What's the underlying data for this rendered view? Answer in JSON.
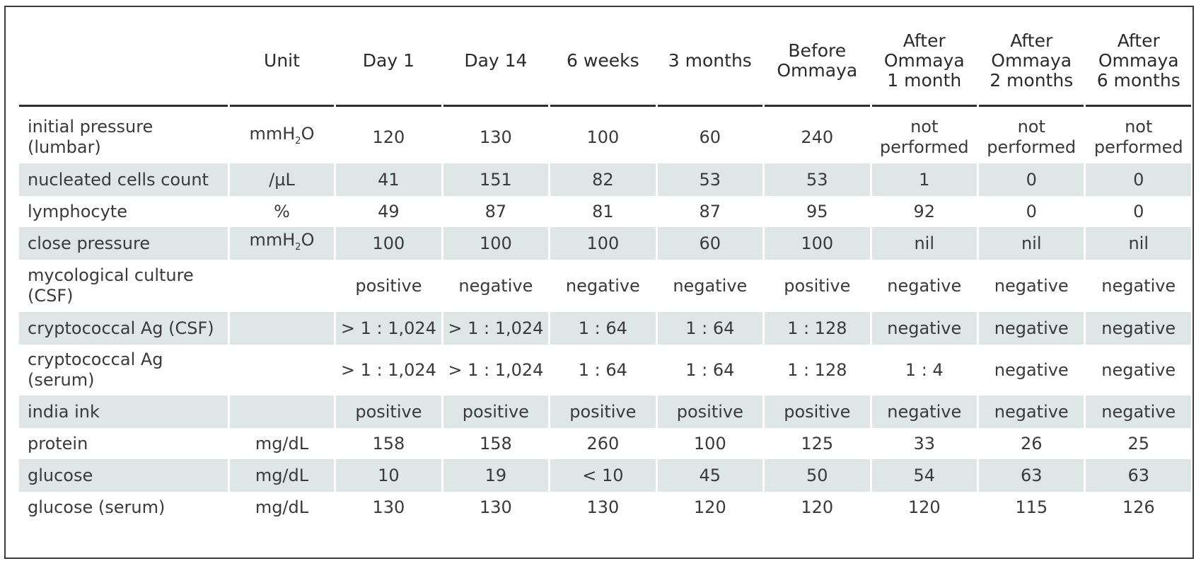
{
  "table": {
    "headers": [
      "",
      "Unit",
      "Day 1",
      "Day 14",
      "6 weeks",
      "3 months",
      "Before\nOmmaya",
      "After\nOmmaya\n1 month",
      "After\nOmmaya\n2 months",
      "After\nOmmaya\n6 months"
    ],
    "header_lines": [
      [
        ""
      ],
      [
        "Unit"
      ],
      [
        "Day 1"
      ],
      [
        "Day 14"
      ],
      [
        "6 weeks"
      ],
      [
        "3 months"
      ],
      [
        "Before",
        "Ommaya"
      ],
      [
        "After",
        "Ommaya",
        "1 month"
      ],
      [
        "After",
        "Ommaya",
        "2 months"
      ],
      [
        "After",
        "Ommaya",
        "6 months"
      ]
    ],
    "rows": [
      {
        "label": [
          "initial pressure",
          "(lumbar)"
        ],
        "unit": {
          "pre": "mmH",
          "sub": "2",
          "post": "O"
        },
        "values": [
          "120",
          "130",
          "100",
          "60",
          "240",
          [
            "not",
            "performed"
          ],
          [
            "not",
            "performed"
          ],
          [
            "not",
            "performed"
          ]
        ],
        "height": 74
      },
      {
        "label": [
          "nucleated cells count"
        ],
        "unit": {
          "pre": "/µL",
          "sub": "",
          "post": ""
        },
        "values": [
          "41",
          "151",
          "82",
          "53",
          "53",
          "1",
          "0",
          "0"
        ],
        "height": 46
      },
      {
        "label": [
          "lymphocyte"
        ],
        "unit": {
          "pre": "%",
          "sub": "",
          "post": ""
        },
        "values": [
          "49",
          "87",
          "81",
          "87",
          "95",
          "92",
          "0",
          "0"
        ],
        "height": 44
      },
      {
        "label": [
          "close pressure"
        ],
        "unit": {
          "pre": "mmH",
          "sub": "2",
          "post": "O"
        },
        "values": [
          "100",
          "100",
          "100",
          "60",
          "100",
          "nil",
          "nil",
          "nil"
        ],
        "height": 46
      },
      {
        "label": [
          "mycological culture",
          "(CSF)"
        ],
        "unit": {
          "pre": "",
          "sub": "",
          "post": ""
        },
        "values": [
          "positive",
          "negative",
          "negative",
          "negative",
          "positive",
          "negative",
          "negative",
          "negative"
        ],
        "height": 74
      },
      {
        "label": [
          "cryptococcal Ag (CSF)"
        ],
        "unit": {
          "pre": "",
          "sub": "",
          "post": ""
        },
        "values": [
          "> 1 : 1,024",
          "> 1 : 1,024",
          "1 : 64",
          "1 : 64",
          "1 : 128",
          "negative",
          "negative",
          "negative"
        ],
        "height": 46
      },
      {
        "label": [
          "cryptococcal Ag",
          "(serum)"
        ],
        "unit": {
          "pre": "",
          "sub": "",
          "post": ""
        },
        "values": [
          "> 1 : 1,024",
          "> 1 : 1,024",
          "1 : 64",
          "1 : 64",
          "1 : 128",
          "1 : 4",
          "negative",
          "negative"
        ],
        "height": 72
      },
      {
        "label": [
          "india ink"
        ],
        "unit": {
          "pre": "",
          "sub": "",
          "post": ""
        },
        "values": [
          "positive",
          "positive",
          "positive",
          "positive",
          "positive",
          "negative",
          "negative",
          "negative"
        ],
        "height": 46
      },
      {
        "label": [
          "protein"
        ],
        "unit": {
          "pre": "mg/dL",
          "sub": "",
          "post": ""
        },
        "values": [
          "158",
          "158",
          "260",
          "100",
          "125",
          "33",
          "26",
          "25"
        ],
        "height": 44
      },
      {
        "label": [
          "glucose"
        ],
        "unit": {
          "pre": "mg/dL",
          "sub": "",
          "post": ""
        },
        "values": [
          "10",
          "19",
          "< 10",
          "45",
          "50",
          "54",
          "63",
          "63"
        ],
        "height": 46
      },
      {
        "label": [
          "glucose (serum)"
        ],
        "unit": {
          "pre": "mg/dL",
          "sub": "",
          "post": ""
        },
        "values": [
          "130",
          "130",
          "130",
          "120",
          "120",
          "120",
          "115",
          "126"
        ],
        "height": 44
      }
    ]
  },
  "colors": {
    "shaded_row": "#dfe6e6",
    "text": "#2b2b2b",
    "rule": "#2f2f2f"
  }
}
